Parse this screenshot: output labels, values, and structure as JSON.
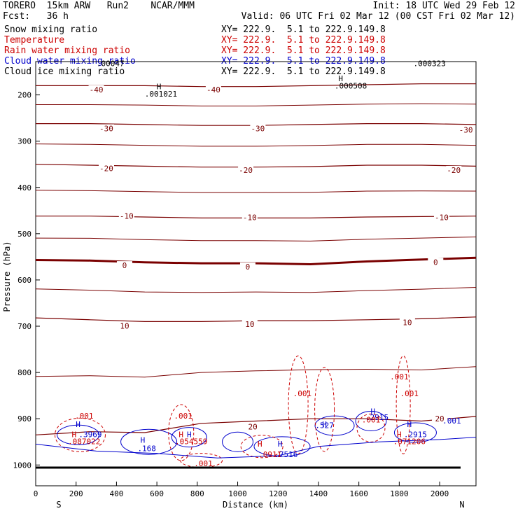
{
  "header": {
    "title_left": "TORERO  15km ARW   Run2    NCAR/MMM",
    "init": "Init: 18 UTC Wed 29 Feb 12",
    "fcst": "Fcst:   36 h",
    "valid": "Valid: 06 UTC Fri 02 Mar 12 (00 CST Fri 02 Mar 12)"
  },
  "legend": [
    {
      "label": "Snow mixing ratio",
      "color": "#000000",
      "xy": "XY= 222.9.  5.1 to 222.9.149.8"
    },
    {
      "label": "Temperature",
      "color": "#cc0000",
      "xy": "XY= 222.9.  5.1 to 222.9.149.8"
    },
    {
      "label": "Rain water mixing ratio",
      "color": "#cc0000",
      "xy": "XY= 222.9.  5.1 to 222.9.149.8"
    },
    {
      "label": "Cloud water mixing ratio",
      "color": "#0000cc",
      "xy": "XY= 222.9.  5.1 to 222.9.149.8"
    },
    {
      "label": "Cloud ice mixing ratio",
      "color": "#000000",
      "xy": "XY= 222.9.  5.1 to 222.9.149.8"
    }
  ],
  "chart_data": {
    "type": "contour-cross-section",
    "xlabel": "Distance (km)",
    "ylabel": "Pressure (hPa)",
    "x_ticks": [
      0,
      200,
      400,
      600,
      800,
      1000,
      1200,
      1400,
      1600,
      1800,
      2000
    ],
    "y_ticks": [
      200,
      300,
      400,
      500,
      600,
      700,
      800,
      900,
      1000
    ],
    "xlim": [
      0,
      2180
    ],
    "ylim": [
      1045,
      128
    ],
    "end_labels": {
      "left": "S",
      "right": "N"
    },
    "temperature_contours": [
      {
        "value": -40,
        "label": "-40",
        "p": [
          180,
          180,
          180,
          182,
          182,
          180,
          178,
          176,
          176
        ]
      },
      {
        "value": -30,
        "label": "-30",
        "p": [
          262,
          262,
          264,
          266,
          266,
          264,
          262,
          262,
          264
        ]
      },
      {
        "value": -20,
        "label": "-20",
        "p": [
          350,
          352,
          354,
          356,
          356,
          355,
          352,
          352,
          354
        ]
      },
      {
        "value": -10,
        "label": "-10",
        "p": [
          462,
          462,
          464,
          466,
          466,
          466,
          464,
          463,
          462
        ]
      },
      {
        "value": 0,
        "label": "0",
        "p": [
          557,
          558,
          562,
          564,
          564,
          566,
          560,
          556,
          552
        ],
        "bold": true
      },
      {
        "value": 10,
        "label": "10",
        "p": [
          682,
          686,
          690,
          690,
          688,
          688,
          686,
          684,
          680
        ]
      },
      {
        "value": 20,
        "label": "20",
        "p": [
          935,
          928,
          930,
          910,
          905,
          900,
          900,
          905,
          895
        ]
      }
    ],
    "contour_x": [
      0,
      270,
      540,
      820,
      1090,
      1360,
      1640,
      1910,
      2180
    ],
    "contour_labels": [
      {
        "text": "-40",
        "x": 300,
        "p": 190
      },
      {
        "text": "-40",
        "x": 880,
        "p": 190
      },
      {
        "text": "-30",
        "x": 350,
        "p": 274
      },
      {
        "text": "-30",
        "x": 1100,
        "p": 274
      },
      {
        "text": "-30",
        "x": 2130,
        "p": 277
      },
      {
        "text": "-20",
        "x": 350,
        "p": 360
      },
      {
        "text": "-20",
        "x": 1040,
        "p": 364
      },
      {
        "text": "-20",
        "x": 2070,
        "p": 364
      },
      {
        "text": "-10",
        "x": 450,
        "p": 463
      },
      {
        "text": "-10",
        "x": 1060,
        "p": 466
      },
      {
        "text": "-10",
        "x": 2010,
        "p": 466
      },
      {
        "text": "0",
        "x": 440,
        "p": 570
      },
      {
        "text": "0",
        "x": 1050,
        "p": 573
      },
      {
        "text": "0",
        "x": 1980,
        "p": 563
      },
      {
        "text": "10",
        "x": 440,
        "p": 701
      },
      {
        "text": "10",
        "x": 1060,
        "p": 697
      },
      {
        "text": "10",
        "x": 1840,
        "p": 693
      },
      {
        "text": "20",
        "x": 1075,
        "p": 919
      },
      {
        "text": "20",
        "x": 2000,
        "p": 901
      }
    ],
    "annotations": [
      {
        "text": "H",
        "x": 610,
        "p": 188,
        "color": "#000000"
      },
      {
        "text": ".001021",
        "x": 620,
        "p": 204,
        "color": "#000000"
      },
      {
        "text": "H",
        "x": 1510,
        "p": 170,
        "color": "#000000"
      },
      {
        "text": ".000508",
        "x": 1560,
        "p": 186,
        "color": "#000000"
      },
      {
        "text": ".000323",
        "x": 1950,
        "p": 138,
        "color": "#000000"
      },
      {
        "text": ".00047",
        "x": 370,
        "p": 138,
        "color": "#000000"
      },
      {
        "text": ".001",
        "x": 1800,
        "p": 815,
        "color": "#cc0000"
      },
      {
        "text": ".001",
        "x": 1320,
        "p": 851,
        "color": "#cc0000"
      },
      {
        "text": ".001",
        "x": 1850,
        "p": 851,
        "color": "#cc0000"
      },
      {
        "text": ".001",
        "x": 240,
        "p": 900,
        "color": "#cc0000"
      },
      {
        "text": ".001",
        "x": 730,
        "p": 900,
        "color": "#cc0000"
      },
      {
        "text": ".001",
        "x": 2060,
        "p": 910,
        "color": "#0000cc"
      },
      {
        "text": "H",
        "x": 210,
        "p": 918,
        "color": "#0000cc"
      },
      {
        "text": "H",
        "x": 1430,
        "p": 918,
        "color": "#0000cc"
      },
      {
        "text": ".527",
        "x": 1430,
        "p": 920,
        "color": "#0000cc"
      },
      {
        "text": "H",
        "x": 1670,
        "p": 890,
        "color": "#0000cc"
      },
      {
        "text": ".2915",
        "x": 1690,
        "p": 903,
        "color": "#0000cc"
      },
      {
        "text": "H",
        "x": 1850,
        "p": 918,
        "color": "#0000cc"
      },
      {
        "text": "H",
        "x": 190,
        "p": 940,
        "color": "#cc0000"
      },
      {
        "text": ".3969",
        "x": 270,
        "p": 940,
        "color": "#0000cc"
      },
      {
        "text": ".087022",
        "x": 240,
        "p": 955,
        "color": "#cc0000"
      },
      {
        "text": "H",
        "x": 530,
        "p": 952,
        "color": "#0000cc"
      },
      {
        "text": ".168",
        "x": 550,
        "p": 970,
        "color": "#0000cc"
      },
      {
        "text": "H",
        "x": 720,
        "p": 940,
        "color": "#cc0000"
      },
      {
        "text": "H",
        "x": 760,
        "p": 940,
        "color": "#0000cc"
      },
      {
        "text": ".054559",
        "x": 770,
        "p": 955,
        "color": "#cc0000"
      },
      {
        "text": "H",
        "x": 1110,
        "p": 960,
        "color": "#cc0000"
      },
      {
        "text": "H",
        "x": 1210,
        "p": 960,
        "color": "#0000cc"
      },
      {
        "text": ".0911",
        "x": 1160,
        "p": 983,
        "color": "#cc0000"
      },
      {
        "text": ".7516",
        "x": 1240,
        "p": 983,
        "color": "#0000cc"
      },
      {
        "text": "H",
        "x": 1800,
        "p": 940,
        "color": "#cc0000"
      },
      {
        "text": ".2915",
        "x": 1880,
        "p": 940,
        "color": "#0000cc"
      },
      {
        "text": ".071206",
        "x": 1850,
        "p": 955,
        "color": "#cc0000"
      },
      {
        "text": ".001",
        "x": 1660,
        "p": 908,
        "color": "#cc0000"
      },
      {
        "text": ".001",
        "x": 830,
        "p": 1003,
        "color": "#cc0000"
      }
    ]
  }
}
